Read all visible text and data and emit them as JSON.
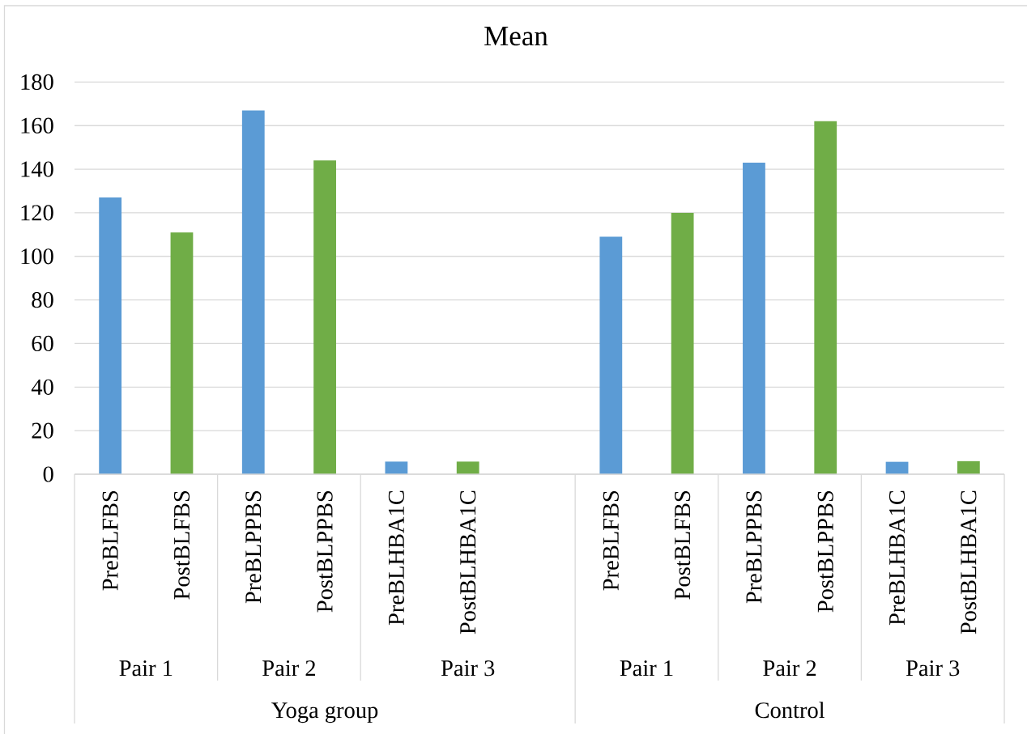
{
  "chart_data": {
    "type": "bar",
    "title": "Mean",
    "categories": [
      "PreBLFBS",
      "PostBLFBS",
      "PreBLPPBS",
      "PostBLPPBS",
      "PreBLHBA1C",
      "PostBLHBA1C",
      null,
      "PreBLFBS",
      "PostBLFBS",
      "PreBLPPBS",
      "PostBLPPBS",
      "PreBLHBA1C",
      "PostBLHBA1C"
    ],
    "values": [
      127,
      111,
      167,
      144,
      5.8,
      5.8,
      null,
      109,
      120,
      143,
      162,
      5.7,
      6.0
    ],
    "colors": [
      "#5b9bd5",
      "#70ad47",
      "#5b9bd5",
      "#70ad47",
      "#5b9bd5",
      "#70ad47",
      null,
      "#5b9bd5",
      "#70ad47",
      "#5b9bd5",
      "#70ad47",
      "#5b9bd5",
      "#70ad47"
    ],
    "ylim": [
      0,
      180
    ],
    "yticks": [
      0,
      20,
      40,
      60,
      80,
      100,
      120,
      140,
      160,
      180
    ],
    "grid": "y",
    "annotations": [
      "Pair 1",
      "Pair 2",
      "Pair 3",
      "Pair 1",
      "Pair 2",
      "Pair 3",
      "Yoga group",
      "Control"
    ]
  }
}
